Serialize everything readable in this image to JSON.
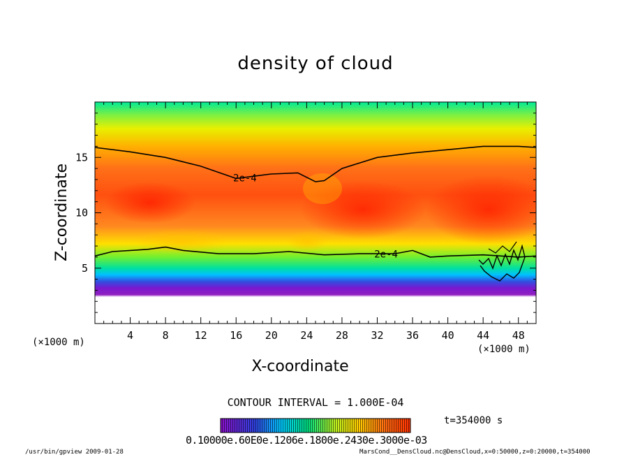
{
  "app": "gpview",
  "chart_data": {
    "type": "heatmap",
    "title": "density of cloud",
    "xlabel": "X-coordinate",
    "ylabel": "Z-coordinate",
    "x_unit_label": "(×1000 m)",
    "xlim": [
      0,
      50
    ],
    "ylim": [
      0,
      20
    ],
    "x_ticks": [
      4,
      8,
      12,
      16,
      20,
      24,
      28,
      32,
      36,
      40,
      44,
      48
    ],
    "y_ticks": [
      5,
      10,
      15
    ],
    "colormap": [
      "#8a10c8",
      "#3040e0",
      "#00c8ff",
      "#00e080",
      "#60ff30",
      "#fff000",
      "#ffa000",
      "#ff3000"
    ],
    "contour_level": "2e-4",
    "contour_labels": [
      {
        "text": "2e-4",
        "x": 17,
        "z": 13.1
      },
      {
        "text": "2e-4",
        "x": 33,
        "z": 6.2
      }
    ],
    "upper_contour": [
      [
        0,
        15.9
      ],
      [
        4,
        15.5
      ],
      [
        8,
        15.0
      ],
      [
        12,
        14.2
      ],
      [
        16,
        13.1
      ],
      [
        20,
        13.5
      ],
      [
        23,
        13.6
      ],
      [
        25,
        12.8
      ],
      [
        26,
        12.9
      ],
      [
        28,
        14.0
      ],
      [
        32,
        15.0
      ],
      [
        36,
        15.4
      ],
      [
        40,
        15.7
      ],
      [
        44,
        16.0
      ],
      [
        48,
        16.0
      ],
      [
        50,
        15.9
      ]
    ],
    "lower_contour": [
      [
        0,
        6.1
      ],
      [
        2,
        6.5
      ],
      [
        4,
        6.6
      ],
      [
        6,
        6.7
      ],
      [
        8,
        6.9
      ],
      [
        10,
        6.6
      ],
      [
        14,
        6.3
      ],
      [
        18,
        6.3
      ],
      [
        22,
        6.5
      ],
      [
        26,
        6.2
      ],
      [
        30,
        6.3
      ],
      [
        34,
        6.3
      ],
      [
        36,
        6.6
      ],
      [
        38,
        6.0
      ],
      [
        40,
        6.1
      ],
      [
        44,
        6.2
      ],
      [
        48,
        6.0
      ],
      [
        50,
        6.1
      ]
    ],
    "contour_interval": "CONTOUR INTERVAL = 1.000E-04",
    "time_label": "t=354000 s",
    "colorbar_labels": "0.10000e.60E0e.1206e.1800e.2430e.3000e-03"
  },
  "footer": {
    "left": "/usr/bin/gpview  2009-01-28",
    "right": "MarsCond__DensCloud.nc@DensCloud,x=0:50000,z=0:20000,t=354000"
  }
}
